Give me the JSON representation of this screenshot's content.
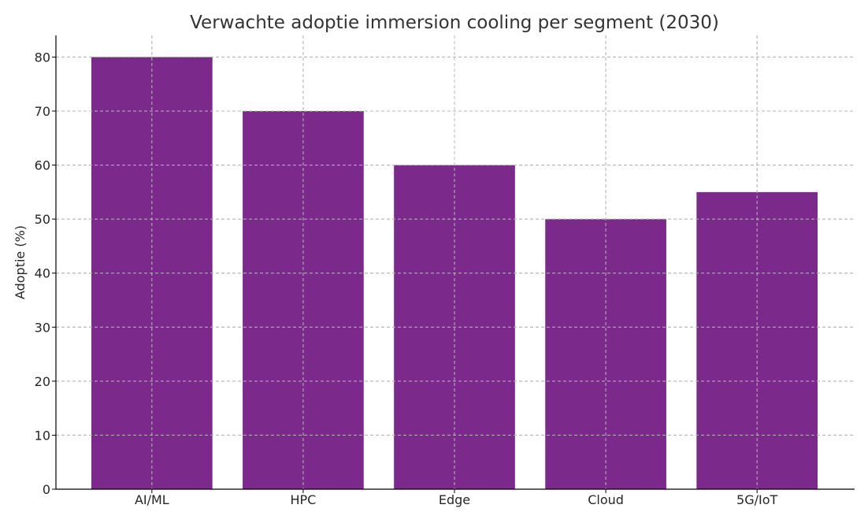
{
  "chart_data": {
    "type": "bar",
    "title": "Verwachte adoptie immersion cooling per segment (2030)",
    "xlabel": "",
    "ylabel": "Adoptie (%)",
    "categories": [
      "AI/ML",
      "HPC",
      "Edge",
      "Cloud",
      "5G/IoT"
    ],
    "values": [
      80,
      70,
      60,
      50,
      55
    ],
    "ylim": [
      0,
      84
    ],
    "yticks": [
      0,
      10,
      20,
      30,
      40,
      50,
      60,
      70,
      80
    ],
    "grid": true,
    "legend": "none",
    "bar_color": "#7b2a8c"
  }
}
